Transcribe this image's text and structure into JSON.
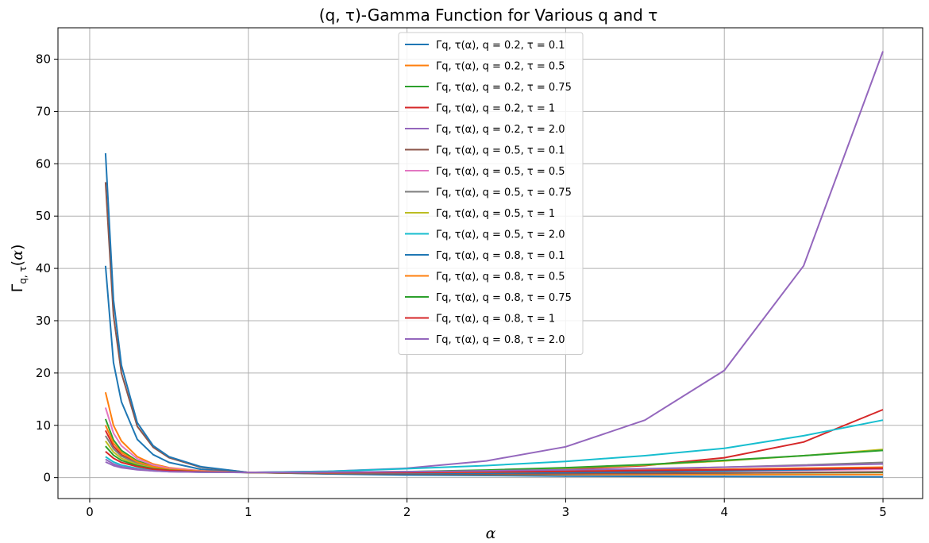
{
  "chart_data": {
    "type": "line",
    "title": "(q, τ)-Gamma Function for Various q and τ",
    "xlabel": "α",
    "ylabel": "Γq, τ(α)",
    "xlim": [
      -0.2,
      5.25
    ],
    "ylim": [
      -4,
      86
    ],
    "xticks": [
      0,
      1,
      2,
      3,
      4,
      5
    ],
    "yticks": [
      0,
      10,
      20,
      30,
      40,
      50,
      60,
      70,
      80
    ],
    "grid": true,
    "legend_position": "top-center",
    "series": [
      {
        "name": "Γq, τ(α), q = 0.2, τ = 0.1",
        "color": "#1f77b4",
        "x": [
          0.1,
          0.15,
          0.2,
          0.3,
          0.4,
          0.5,
          0.7,
          1.0,
          1.5,
          2.0,
          2.5,
          3.0,
          3.5,
          4.0,
          4.5,
          5.0
        ],
        "y": [
          40.5,
          22.0,
          14.5,
          7.3,
          4.4,
          2.9,
          1.6,
          1.0,
          0.7,
          0.5,
          0.4,
          0.3,
          0.25,
          0.2,
          0.18,
          0.15
        ]
      },
      {
        "name": "Γq, τ(α), q = 0.2, τ = 0.5",
        "color": "#ff7f0e",
        "x": [
          0.1,
          0.15,
          0.2,
          0.3,
          0.4,
          0.5,
          0.7,
          1.0,
          1.5,
          2.0,
          2.5,
          3.0,
          3.5,
          4.0,
          4.5,
          5.0
        ],
        "y": [
          16.3,
          10.0,
          7.0,
          4.0,
          2.6,
          1.9,
          1.3,
          1.0,
          0.8,
          0.7,
          0.65,
          0.6,
          0.6,
          0.6,
          0.6,
          0.6
        ]
      },
      {
        "name": "Γq, τ(α), q = 0.2, τ = 0.75",
        "color": "#2ca02c",
        "x": [
          0.1,
          0.15,
          0.2,
          0.3,
          0.4,
          0.5,
          0.7,
          1.0,
          1.5,
          2.0,
          2.5,
          3.0,
          3.5,
          4.0,
          4.5,
          5.0
        ],
        "y": [
          11.2,
          7.2,
          5.2,
          3.2,
          2.2,
          1.7,
          1.25,
          1.0,
          0.85,
          0.8,
          0.8,
          0.82,
          0.85,
          0.9,
          0.95,
          1.0
        ]
      },
      {
        "name": "Γq, τ(α), q = 0.2, τ = 1",
        "color": "#d62728",
        "x": [
          0.1,
          0.15,
          0.2,
          0.3,
          0.4,
          0.5,
          0.7,
          1.0,
          1.5,
          2.0,
          2.5,
          3.0,
          3.5,
          4.0,
          4.5,
          5.0
        ],
        "y": [
          9.0,
          6.0,
          4.4,
          2.8,
          2.0,
          1.6,
          1.2,
          1.0,
          0.9,
          1.0,
          1.2,
          1.6,
          2.3,
          3.8,
          6.8,
          13.0
        ]
      },
      {
        "name": "Γq, τ(α), q = 0.2, τ = 2.0",
        "color": "#9467bd",
        "x": [
          0.1,
          0.15,
          0.2,
          0.3,
          0.4,
          0.5,
          0.7,
          1.0,
          1.5,
          2.0,
          2.5,
          3.0,
          3.5,
          4.0,
          4.5,
          5.0
        ],
        "y": [
          3.0,
          2.3,
          1.9,
          1.5,
          1.3,
          1.15,
          1.05,
          1.0,
          1.2,
          1.8,
          3.2,
          5.9,
          11.0,
          20.5,
          40.5,
          81.5
        ]
      },
      {
        "name": "Γq, τ(α), q = 0.5, τ = 0.1",
        "color": "#8c564b",
        "x": [
          0.1,
          0.15,
          0.2,
          0.3,
          0.4,
          0.5,
          0.7,
          1.0,
          1.5,
          2.0,
          2.5,
          3.0,
          3.5,
          4.0,
          4.5,
          5.0
        ],
        "y": [
          56.5,
          31.0,
          20.0,
          9.8,
          5.8,
          3.8,
          2.0,
          1.0,
          0.75,
          0.7,
          0.7,
          0.75,
          0.8,
          0.9,
          1.0,
          1.1
        ]
      },
      {
        "name": "Γq, τ(α), q = 0.5, τ = 0.5",
        "color": "#e377c2",
        "x": [
          0.1,
          0.15,
          0.2,
          0.3,
          0.4,
          0.5,
          0.7,
          1.0,
          1.5,
          2.0,
          2.5,
          3.0,
          3.5,
          4.0,
          4.5,
          5.0
        ],
        "y": [
          13.4,
          8.5,
          6.1,
          3.6,
          2.4,
          1.8,
          1.25,
          1.0,
          0.85,
          0.85,
          0.9,
          1.0,
          1.1,
          1.25,
          1.4,
          1.6
        ]
      },
      {
        "name": "Γq, τ(α), q = 0.5, τ = 0.75",
        "color": "#7f7f7f",
        "x": [
          0.1,
          0.15,
          0.2,
          0.3,
          0.4,
          0.5,
          0.7,
          1.0,
          1.5,
          2.0,
          2.5,
          3.0,
          3.5,
          4.0,
          4.5,
          5.0
        ],
        "y": [
          8.0,
          5.5,
          4.1,
          2.7,
          1.9,
          1.5,
          1.15,
          1.0,
          0.9,
          0.95,
          1.1,
          1.3,
          1.6,
          2.0,
          2.4,
          2.9
        ]
      },
      {
        "name": "Γq, τ(α), q = 0.5, τ = 1",
        "color": "#bcbd22",
        "x": [
          0.1,
          0.15,
          0.2,
          0.3,
          0.4,
          0.5,
          0.7,
          1.0,
          1.5,
          2.0,
          2.5,
          3.0,
          3.5,
          4.0,
          4.5,
          5.0
        ],
        "y": [
          7.0,
          4.9,
          3.7,
          2.5,
          1.8,
          1.45,
          1.12,
          1.0,
          0.95,
          1.1,
          1.35,
          1.8,
          2.4,
          3.2,
          4.2,
          5.4
        ]
      },
      {
        "name": "Γq, τ(α), q = 0.5, τ = 2.0",
        "color": "#17becf",
        "x": [
          0.1,
          0.15,
          0.2,
          0.3,
          0.4,
          0.5,
          0.7,
          1.0,
          1.5,
          2.0,
          2.5,
          3.0,
          3.5,
          4.0,
          4.5,
          5.0
        ],
        "y": [
          4.0,
          3.0,
          2.4,
          1.75,
          1.4,
          1.2,
          1.05,
          1.0,
          1.2,
          1.7,
          2.3,
          3.1,
          4.2,
          5.6,
          8.0,
          11.0
        ]
      },
      {
        "name": "Γq, τ(α), q = 0.8, τ = 0.1",
        "color": "#1f77b4",
        "x": [
          0.1,
          0.15,
          0.2,
          0.3,
          0.4,
          0.5,
          0.7,
          1.0,
          1.5,
          2.0,
          2.5,
          3.0,
          3.5,
          4.0,
          4.5,
          5.0
        ],
        "y": [
          62.0,
          34.0,
          21.5,
          10.5,
          6.1,
          4.0,
          2.1,
          1.0,
          0.8,
          0.8,
          0.85,
          0.95,
          1.1,
          1.3,
          1.5,
          1.8
        ]
      },
      {
        "name": "Γq, τ(α), q = 0.8, τ = 0.5",
        "color": "#ff7f0e",
        "x": [
          0.1,
          0.15,
          0.2,
          0.3,
          0.4,
          0.5,
          0.7,
          1.0,
          1.5,
          2.0,
          2.5,
          3.0,
          3.5,
          4.0,
          4.5,
          5.0
        ],
        "y": [
          10.0,
          6.6,
          4.8,
          3.0,
          2.1,
          1.6,
          1.2,
          1.0,
          0.9,
          0.95,
          1.05,
          1.2,
          1.4,
          1.6,
          1.8,
          2.0
        ]
      },
      {
        "name": "Γq, τ(α), q = 0.8, τ = 0.75",
        "color": "#2ca02c",
        "x": [
          0.1,
          0.15,
          0.2,
          0.3,
          0.4,
          0.5,
          0.7,
          1.0,
          1.5,
          2.0,
          2.5,
          3.0,
          3.5,
          4.0,
          4.5,
          5.0
        ],
        "y": [
          6.0,
          4.3,
          3.3,
          2.3,
          1.7,
          1.4,
          1.1,
          1.0,
          1.0,
          1.15,
          1.45,
          1.9,
          2.5,
          3.3,
          4.2,
          5.2
        ]
      },
      {
        "name": "Γq, τ(α), q = 0.8, τ = 1",
        "color": "#d62728",
        "x": [
          0.1,
          0.15,
          0.2,
          0.3,
          0.4,
          0.5,
          0.7,
          1.0,
          1.5,
          2.0,
          2.5,
          3.0,
          3.5,
          4.0,
          4.5,
          5.0
        ],
        "y": [
          5.0,
          3.7,
          2.9,
          2.1,
          1.6,
          1.35,
          1.1,
          1.0,
          0.95,
          1.0,
          1.1,
          1.2,
          1.35,
          1.5,
          1.65,
          1.8
        ]
      },
      {
        "name": "Γq, τ(α), q = 0.8, τ = 2.0",
        "color": "#9467bd",
        "x": [
          0.1,
          0.15,
          0.2,
          0.3,
          0.4,
          0.5,
          0.7,
          1.0,
          1.5,
          2.0,
          2.5,
          3.0,
          3.5,
          4.0,
          4.5,
          5.0
        ],
        "y": [
          3.5,
          2.6,
          2.1,
          1.6,
          1.3,
          1.15,
          1.05,
          1.0,
          1.05,
          1.15,
          1.3,
          1.5,
          1.7,
          2.0,
          2.3,
          2.6
        ]
      }
    ]
  }
}
